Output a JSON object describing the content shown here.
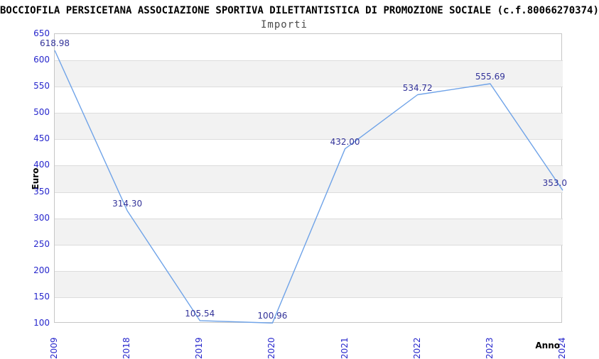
{
  "chart_data": {
    "type": "line",
    "title": "BOCCIOFILA PERSICETANA ASSOCIAZIONE SPORTIVA DILETTANTISTICA DI PROMOZIONE SOCIALE (c.f.80066270374)",
    "subtitle": "Importi",
    "xlabel": "Anno",
    "ylabel": "Euro",
    "categories": [
      "2009",
      "2018",
      "2019",
      "2020",
      "2021",
      "2022",
      "2023",
      "2024"
    ],
    "values": [
      618.98,
      314.3,
      105.54,
      100.96,
      432.0,
      534.72,
      555.69,
      353.0
    ],
    "point_labels": [
      "618.98",
      "314.30",
      "105.54",
      "100.96",
      "432.00",
      "534.72",
      "555.69",
      "353.0"
    ],
    "ylim": [
      100,
      650
    ],
    "ytick_step": 50,
    "grid": "horizontal-bands",
    "legend": "none",
    "colors": {
      "line": "#6FA3E8",
      "axis_ticks": "#2626CC",
      "point_labels": "#333399",
      "band_gray": "#F2F2F2",
      "gridline": "#DCDCDC",
      "frame": "#C6C6C6",
      "title": "#000000",
      "subtitle": "#4A4A4A"
    }
  }
}
